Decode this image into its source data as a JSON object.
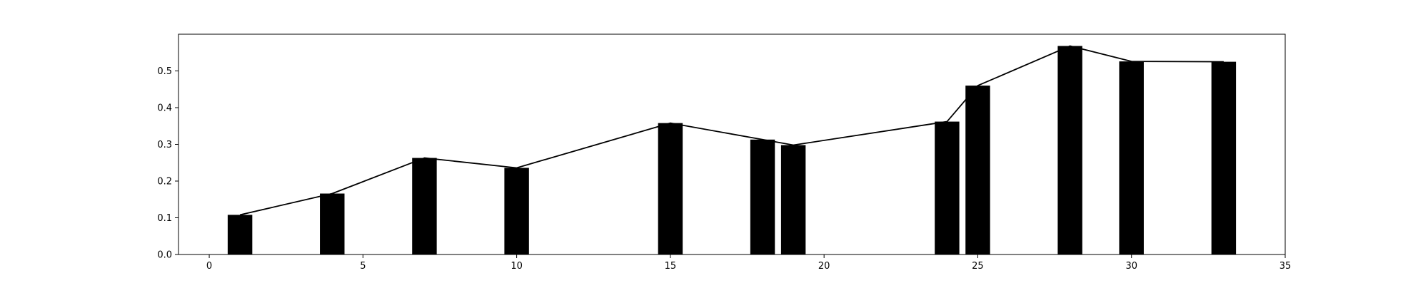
{
  "chart_data": {
    "type": "bar",
    "title": "",
    "xlabel": "",
    "ylabel": "",
    "xlim": [
      -1,
      35
    ],
    "ylim": [
      0,
      0.6
    ],
    "grid": false,
    "legend": "none",
    "bar_color": "#000000",
    "line_color": "#000000",
    "bar_width": 0.8,
    "x_ticks": [
      0,
      5,
      10,
      15,
      20,
      25,
      30,
      35
    ],
    "y_ticks": [
      0.0,
      0.1,
      0.2,
      0.3,
      0.4,
      0.5
    ],
    "x_tick_labels": [
      "0",
      "5",
      "10",
      "15",
      "20",
      "25",
      "30",
      "35"
    ],
    "y_tick_labels": [
      "0.0",
      "0.1",
      "0.2",
      "0.3",
      "0.4",
      "0.5"
    ],
    "x": [
      1,
      4,
      7,
      10,
      15,
      18,
      19,
      24,
      25,
      28,
      30,
      33
    ],
    "values": [
      0.108,
      0.166,
      0.263,
      0.236,
      0.358,
      0.313,
      0.298,
      0.362,
      0.46,
      0.568,
      0.526,
      0.525
    ]
  }
}
